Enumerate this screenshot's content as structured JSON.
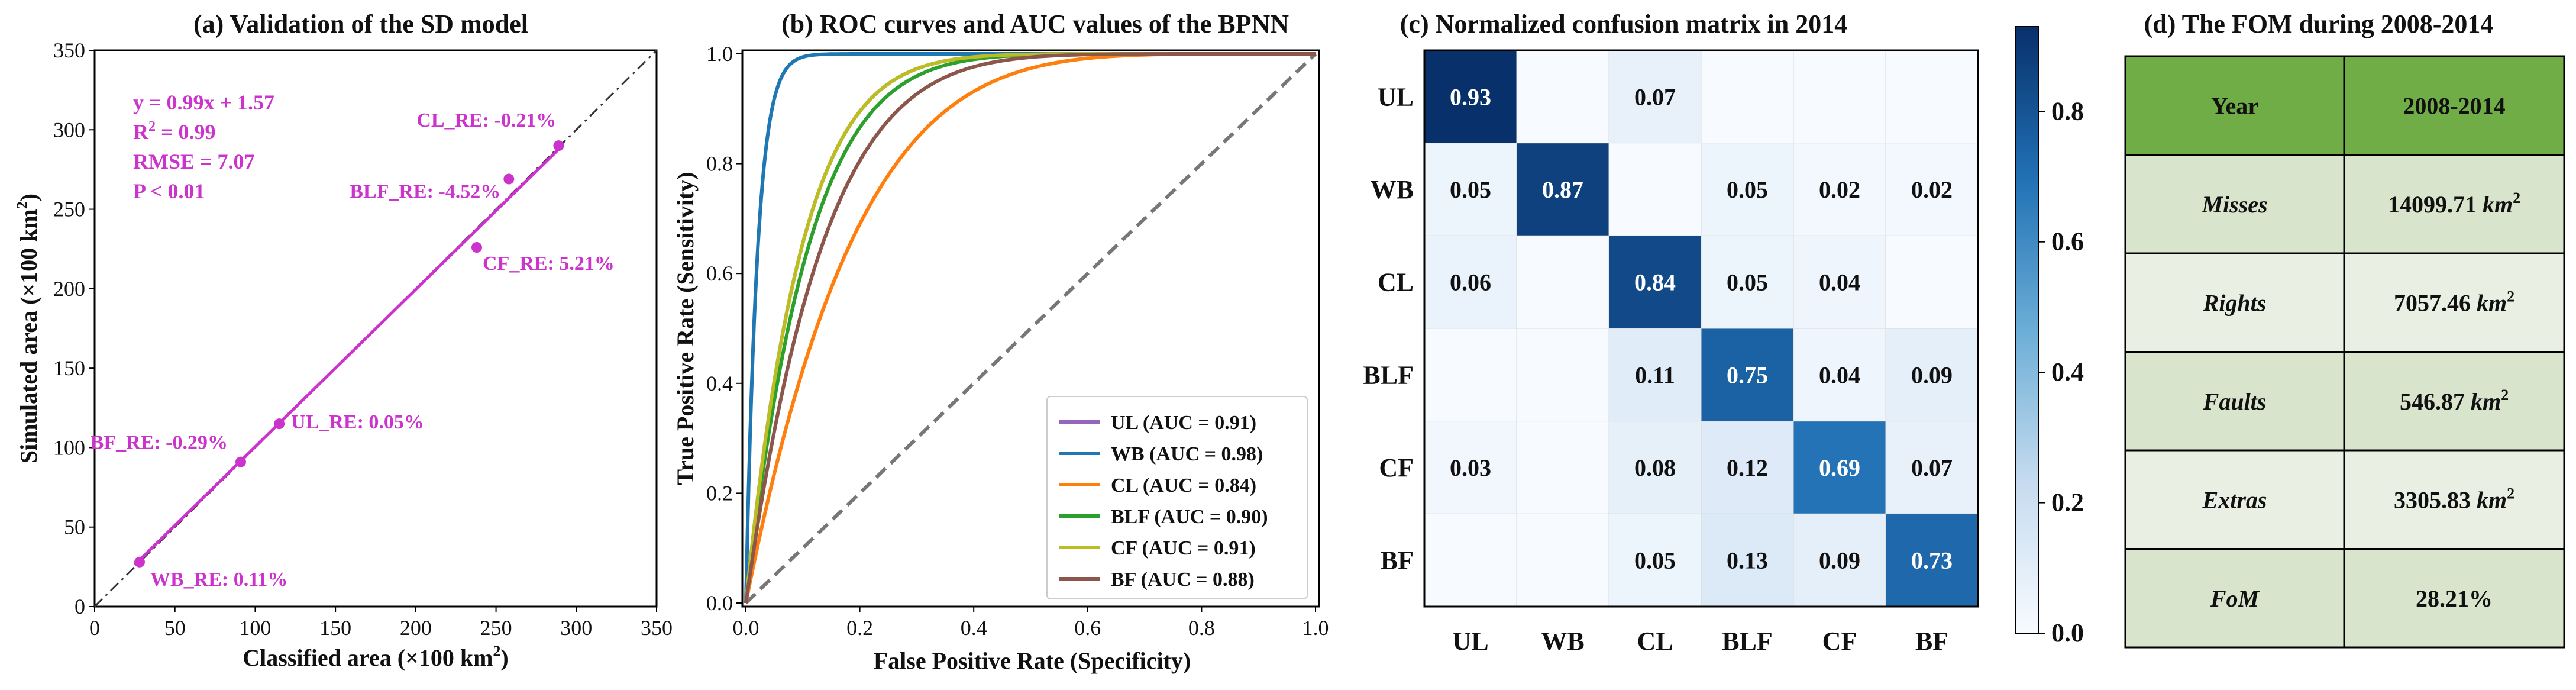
{
  "chart_data": [
    {
      "type": "scatter",
      "title": "(a) Validation of the SD model",
      "xlabel": "Classified area (×100 km",
      "ylabel": "Simulated area (×100 km",
      "unit_sup": "2",
      "xlim": [
        0,
        350
      ],
      "ylim": [
        0,
        350
      ],
      "xticks": [
        "0",
        "50",
        "100",
        "150",
        "200",
        "250",
        "300",
        "350"
      ],
      "yticks": [
        "0",
        "50",
        "100",
        "150",
        "200",
        "250",
        "300",
        "350"
      ],
      "fit_line": {
        "slope": 0.99,
        "intercept": 1.57
      },
      "identity_line": true,
      "stats": {
        "equation": "y = 0.99x + 1.57",
        "r2_prefix": "R",
        "r2_sup": "2",
        "r2_value": " = 0.99",
        "rmse": "RMSE = 7.07",
        "p": "P < 0.01"
      },
      "points": [
        {
          "x": 28,
          "y": 28,
          "label": "WB_RE: 0.11%"
        },
        {
          "x": 91,
          "y": 91,
          "label": "BF_RE: -0.29%"
        },
        {
          "x": 115,
          "y": 115,
          "label": "UL_RE: 0.05%"
        },
        {
          "x": 238,
          "y": 226,
          "label": "CF_RE: 5.21%"
        },
        {
          "x": 258,
          "y": 269,
          "label": "BLF_RE: -4.52%"
        },
        {
          "x": 289,
          "y": 290,
          "label": "CL_RE: -0.21%"
        }
      ]
    },
    {
      "type": "line",
      "title": "(b) ROC curves and AUC values of the BPNN",
      "xlabel": "False Positive Rate (Specificity)",
      "ylabel": "True Positive Rate (Sensitivity)",
      "xlim": [
        0,
        1
      ],
      "ylim": [
        0,
        1
      ],
      "xticks": [
        "0.0",
        "0.2",
        "0.4",
        "0.6",
        "0.8",
        "1.0"
      ],
      "yticks": [
        "0.0",
        "0.2",
        "0.4",
        "0.6",
        "0.8",
        "1.0"
      ],
      "legend_position": "lower-right",
      "series": [
        {
          "name": "UL (AUC = 0.91)",
          "auc": 0.91,
          "color": "#9467bd"
        },
        {
          "name": "WB (AUC = 0.98)",
          "auc": 0.98,
          "color": "#1f77b4"
        },
        {
          "name": "CL (AUC = 0.84)",
          "auc": 0.84,
          "color": "#ff7f0e"
        },
        {
          "name": "BLF (AUC = 0.90)",
          "auc": 0.9,
          "color": "#2ca02c"
        },
        {
          "name": "CF (AUC = 0.91)",
          "auc": 0.91,
          "color": "#bcbd22"
        },
        {
          "name": "BF (AUC = 0.88)",
          "auc": 0.88,
          "color": "#8c564b"
        }
      ]
    },
    {
      "type": "heatmap",
      "title": "(c) Normalized confusion matrix in 2014",
      "categories": [
        "UL",
        "WB",
        "CL",
        "BLF",
        "CF",
        "BF"
      ],
      "matrix": [
        [
          0.93,
          null,
          0.07,
          null,
          null,
          null
        ],
        [
          0.05,
          0.87,
          null,
          0.05,
          0.02,
          0.02
        ],
        [
          0.06,
          null,
          0.84,
          0.05,
          0.04,
          null
        ],
        [
          null,
          null,
          0.11,
          0.75,
          0.04,
          0.09
        ],
        [
          0.03,
          null,
          0.08,
          0.12,
          0.69,
          0.07
        ],
        [
          null,
          null,
          0.05,
          0.13,
          0.09,
          0.73
        ]
      ],
      "colorbar": {
        "min": 0.0,
        "max": 0.93,
        "ticks": [
          "0.0",
          "0.2",
          "0.4",
          "0.6",
          "0.8"
        ]
      }
    },
    {
      "type": "table",
      "title": "(d) The FOM during 2008-2014",
      "header": [
        "Year",
        "2008-2014"
      ],
      "rows": [
        {
          "label": "Misses",
          "value": "14099.71",
          "unit": "km",
          "sup": "2"
        },
        {
          "label": "Rights",
          "value": "7057.46",
          "unit": "km",
          "sup": "2"
        },
        {
          "label": "Faults",
          "value": "546.87",
          "unit": "km",
          "sup": "2"
        },
        {
          "label": "Extras",
          "value": "3305.83",
          "unit": "km",
          "sup": "2"
        },
        {
          "label": "FoM",
          "value": "28.21%",
          "unit": "",
          "sup": ""
        }
      ],
      "colors": {
        "header": "#70ad47",
        "row_a": "#d8e4cc",
        "row_b": "#eaefe4"
      }
    }
  ]
}
